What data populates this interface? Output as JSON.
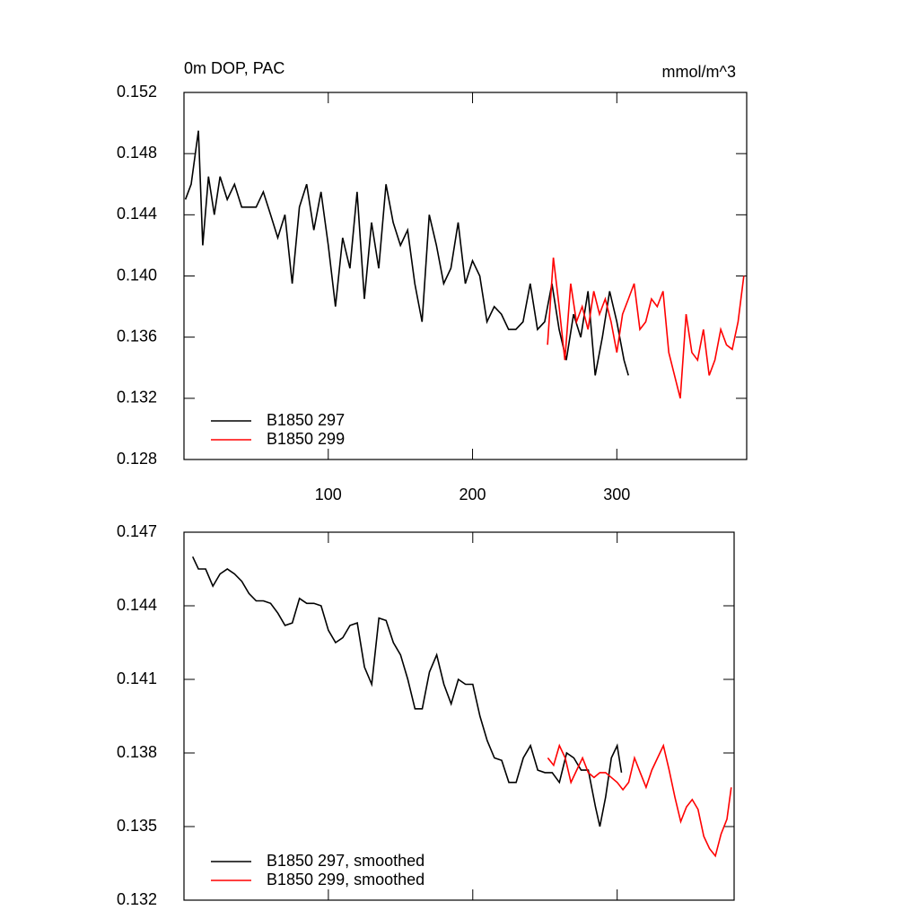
{
  "chart_data": [
    {
      "type": "line",
      "title": "0m DOP, PAC",
      "units": "mmol/m^3",
      "xlim": [
        0,
        390
      ],
      "xticks": [
        100,
        200,
        300
      ],
      "show_xtick_labels": true,
      "ylim": [
        0.128,
        0.152
      ],
      "yticks": [
        0.128,
        0.132,
        0.136,
        {
          "value": 0.14,
          "label": "0.140"
        },
        0.144,
        0.148,
        0.152
      ],
      "legend": "lower left",
      "series": [
        {
          "name": "B1850 297",
          "color": "#000000",
          "x": [
            1,
            5,
            10,
            13,
            17,
            21,
            25,
            30,
            35,
            40,
            45,
            50,
            55,
            60,
            65,
            70,
            75,
            80,
            85,
            90,
            95,
            100,
            105,
            110,
            115,
            120,
            125,
            130,
            135,
            140,
            145,
            150,
            155,
            160,
            165,
            170,
            175,
            180,
            185,
            190,
            195,
            200,
            205,
            210,
            215,
            220,
            225,
            230,
            235,
            240,
            245,
            250,
            255,
            260,
            265,
            270,
            275,
            280,
            285,
            290,
            295,
            300,
            305,
            308
          ],
          "values": [
            0.145,
            0.146,
            0.1495,
            0.142,
            0.1465,
            0.144,
            0.1465,
            0.145,
            0.146,
            0.1445,
            0.1445,
            0.1445,
            0.1455,
            0.144,
            0.1425,
            0.144,
            0.1395,
            0.1445,
            0.146,
            0.143,
            0.1455,
            0.142,
            0.138,
            0.1425,
            0.1405,
            0.1455,
            0.1385,
            0.1435,
            0.1405,
            0.146,
            0.1435,
            0.142,
            0.143,
            0.1395,
            0.137,
            0.144,
            0.142,
            0.1395,
            0.1405,
            0.1435,
            0.1395,
            0.141,
            0.14,
            0.137,
            0.138,
            0.1375,
            0.1365,
            0.1365,
            0.137,
            0.1395,
            0.1365,
            0.137,
            0.1395,
            0.1365,
            0.1345,
            0.1375,
            0.136,
            0.139,
            0.1335,
            0.136,
            0.139,
            0.137,
            0.1345,
            0.1335
          ]
        },
        {
          "name": "B1850 299",
          "color": "#ff0000",
          "x": [
            252,
            256,
            260,
            264,
            268,
            272,
            276,
            280,
            284,
            288,
            292,
            296,
            300,
            304,
            308,
            312,
            316,
            320,
            324,
            328,
            332,
            336,
            340,
            344,
            348,
            352,
            356,
            360,
            364,
            368,
            372,
            376,
            380,
            384,
            388
          ],
          "values": [
            0.1355,
            0.1412,
            0.138,
            0.1345,
            0.1395,
            0.137,
            0.138,
            0.1365,
            0.139,
            0.1375,
            0.1385,
            0.137,
            0.135,
            0.1375,
            0.1385,
            0.1395,
            0.1365,
            0.137,
            0.1385,
            0.138,
            0.139,
            0.135,
            0.1335,
            0.132,
            0.1375,
            0.135,
            0.1345,
            0.1365,
            0.1335,
            0.1345,
            0.1365,
            0.1355,
            0.1352,
            0.137,
            0.14
          ]
        }
      ]
    },
    {
      "type": "line",
      "xlim": [
        0,
        381
      ],
      "xticks": [
        100,
        200,
        300
      ],
      "show_xtick_labels": false,
      "ylim": [
        0.132,
        0.147
      ],
      "yticks": [
        0.132,
        0.135,
        0.138,
        0.141,
        0.144,
        0.147
      ],
      "legend": "lower left",
      "series": [
        {
          "name": "B1850 297, smoothed",
          "color": "#000000",
          "x": [
            6,
            10,
            15,
            20,
            25,
            30,
            35,
            40,
            45,
            50,
            55,
            60,
            65,
            70,
            75,
            80,
            85,
            90,
            95,
            100,
            105,
            110,
            115,
            120,
            125,
            130,
            135,
            140,
            145,
            150,
            155,
            160,
            165,
            170,
            175,
            180,
            185,
            190,
            195,
            200,
            205,
            210,
            215,
            220,
            225,
            230,
            235,
            240,
            245,
            250,
            255,
            260,
            265,
            270,
            275,
            280,
            285,
            288,
            292,
            296,
            300,
            303
          ],
          "values": [
            0.146,
            0.1455,
            0.1455,
            0.1448,
            0.1453,
            0.1455,
            0.1453,
            0.145,
            0.1445,
            0.1442,
            0.1442,
            0.1441,
            0.1437,
            0.1432,
            0.1433,
            0.1443,
            0.1441,
            0.1441,
            0.144,
            0.143,
            0.1425,
            0.1427,
            0.1432,
            0.1433,
            0.1415,
            0.1408,
            0.1435,
            0.1434,
            0.1425,
            0.142,
            0.141,
            0.1398,
            0.1398,
            0.1413,
            0.142,
            0.1408,
            0.14,
            0.141,
            0.1408,
            0.1408,
            0.1395,
            0.1385,
            0.1378,
            0.1377,
            0.1368,
            0.1368,
            0.1378,
            0.1383,
            0.1373,
            0.1372,
            0.1372,
            0.1368,
            0.138,
            0.1378,
            0.1373,
            0.1373,
            0.1358,
            0.135,
            0.1362,
            0.1378,
            0.1383,
            0.1372
          ]
        },
        {
          "name": "B1850 299, smoothed",
          "color": "#ff0000",
          "x": [
            252,
            256,
            260,
            264,
            268,
            272,
            276,
            280,
            284,
            288,
            292,
            296,
            300,
            304,
            308,
            312,
            316,
            320,
            324,
            328,
            332,
            336,
            340,
            344,
            348,
            352,
            356,
            360,
            364,
            368,
            372,
            376,
            379
          ],
          "values": [
            0.1378,
            0.1375,
            0.1383,
            0.1378,
            0.1368,
            0.1373,
            0.1378,
            0.1372,
            0.137,
            0.1372,
            0.1372,
            0.137,
            0.1368,
            0.1365,
            0.1368,
            0.1378,
            0.1372,
            0.1366,
            0.1373,
            0.1378,
            0.1383,
            0.1373,
            0.1362,
            0.1352,
            0.1358,
            0.1361,
            0.1357,
            0.1346,
            0.1341,
            0.1338,
            0.1347,
            0.1353,
            0.1366
          ]
        }
      ]
    }
  ]
}
